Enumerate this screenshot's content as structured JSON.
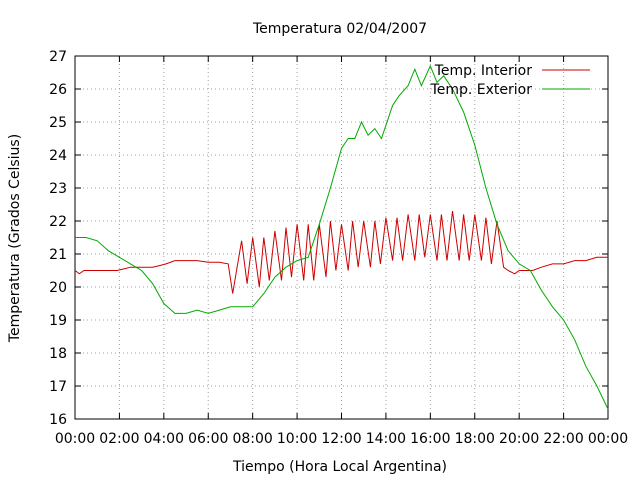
{
  "chart_data": {
    "type": "line",
    "title": "Temperatura 02/04/2007",
    "xlabel": "Tiempo (Hora Local Argentina)",
    "ylabel": "Temperatura (Grados Celsius)",
    "xlim": [
      0,
      24
    ],
    "ylim": [
      16,
      27
    ],
    "x_ticks": [
      "00:00",
      "02:00",
      "04:00",
      "06:00",
      "08:00",
      "10:00",
      "12:00",
      "14:00",
      "16:00",
      "18:00",
      "20:00",
      "22:00",
      "00:00"
    ],
    "y_ticks": [
      16,
      17,
      18,
      19,
      20,
      21,
      22,
      23,
      24,
      25,
      26,
      27
    ],
    "grid": true,
    "legend_position": "top-right",
    "series": [
      {
        "name": "Temp. Interior",
        "color": "#cc0000",
        "x": [
          0.0,
          0.2,
          0.4,
          0.5,
          1.0,
          1.5,
          1.9,
          2.2,
          2.5,
          3.0,
          3.5,
          3.8,
          4.1,
          4.5,
          5.0,
          5.5,
          6.0,
          6.5,
          6.9,
          7.1,
          7.3,
          7.5,
          7.75,
          8.0,
          8.3,
          8.5,
          8.75,
          9.0,
          9.3,
          9.5,
          9.75,
          10.0,
          10.3,
          10.5,
          10.75,
          11.0,
          11.3,
          11.5,
          11.75,
          12.0,
          12.3,
          12.5,
          12.75,
          13.0,
          13.3,
          13.5,
          13.75,
          14.0,
          14.3,
          14.5,
          14.75,
          15.0,
          15.3,
          15.5,
          15.75,
          16.0,
          16.3,
          16.5,
          16.75,
          17.0,
          17.3,
          17.5,
          17.75,
          18.0,
          18.3,
          18.5,
          18.75,
          19.0,
          19.3,
          19.5,
          19.8,
          20.0,
          20.3,
          20.6,
          21.0,
          21.5,
          22.0,
          22.5,
          23.0,
          23.5,
          24.0
        ],
        "y": [
          20.5,
          20.4,
          20.5,
          20.5,
          20.5,
          20.5,
          20.5,
          20.55,
          20.6,
          20.6,
          20.6,
          20.65,
          20.7,
          20.8,
          20.8,
          20.8,
          20.75,
          20.75,
          20.7,
          19.8,
          20.6,
          21.4,
          20.1,
          21.5,
          20.0,
          21.5,
          20.2,
          21.7,
          20.2,
          21.8,
          20.3,
          21.9,
          20.2,
          21.9,
          20.2,
          21.9,
          20.3,
          22.0,
          20.5,
          21.9,
          20.5,
          22.0,
          20.6,
          22.0,
          20.6,
          22.0,
          20.7,
          22.1,
          20.8,
          22.1,
          20.8,
          22.2,
          20.8,
          22.2,
          20.9,
          22.2,
          20.8,
          22.2,
          20.8,
          22.3,
          20.8,
          22.2,
          20.8,
          22.2,
          20.8,
          22.1,
          20.7,
          22.0,
          20.6,
          20.5,
          20.4,
          20.5,
          20.5,
          20.5,
          20.6,
          20.7,
          20.7,
          20.8,
          20.8,
          20.9,
          20.9
        ]
      },
      {
        "name": "Temp. Exterior",
        "color": "#00aa00",
        "x": [
          0.0,
          0.5,
          1.0,
          1.5,
          2.0,
          2.5,
          3.0,
          3.5,
          4.0,
          4.5,
          5.0,
          5.5,
          6.0,
          6.5,
          7.0,
          7.5,
          8.0,
          8.5,
          9.0,
          9.5,
          10.0,
          10.5,
          11.0,
          11.5,
          12.0,
          12.3,
          12.6,
          12.9,
          13.2,
          13.5,
          13.8,
          14.0,
          14.3,
          14.6,
          15.0,
          15.3,
          15.6,
          16.0,
          16.3,
          16.6,
          17.0,
          17.5,
          18.0,
          18.5,
          19.0,
          19.5,
          20.0,
          20.5,
          21.0,
          21.5,
          22.0,
          22.5,
          23.0,
          23.5,
          24.0
        ],
        "y": [
          21.5,
          21.5,
          21.4,
          21.1,
          20.9,
          20.7,
          20.5,
          20.1,
          19.5,
          19.2,
          19.2,
          19.3,
          19.2,
          19.3,
          19.4,
          19.4,
          19.4,
          19.8,
          20.3,
          20.6,
          20.8,
          20.9,
          21.9,
          23.0,
          24.2,
          24.5,
          24.5,
          25.0,
          24.6,
          24.8,
          24.5,
          24.9,
          25.5,
          25.8,
          26.1,
          26.6,
          26.1,
          26.7,
          26.2,
          26.4,
          26.0,
          25.3,
          24.3,
          23.0,
          21.9,
          21.1,
          20.7,
          20.5,
          19.9,
          19.4,
          19.0,
          18.4,
          17.6,
          17.0,
          16.3
        ]
      }
    ]
  }
}
